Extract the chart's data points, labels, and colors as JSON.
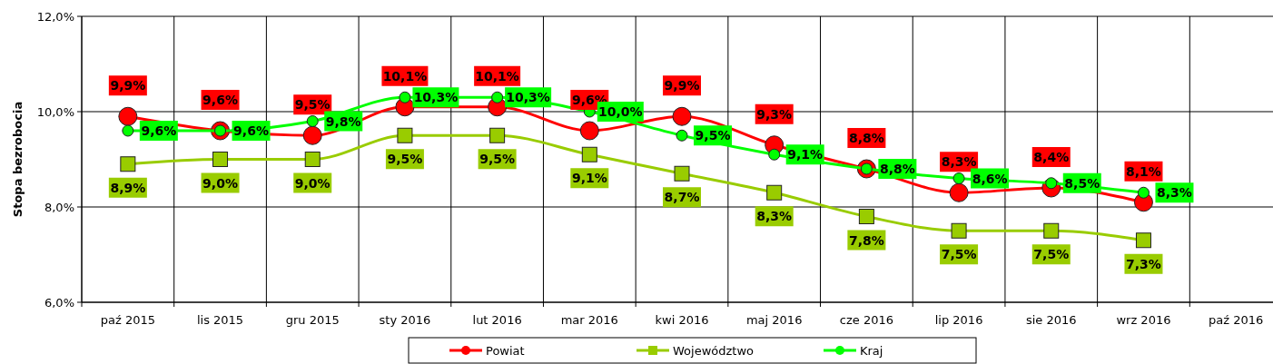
{
  "chart_data": {
    "type": "line",
    "ylabel": "Stopa bezrobocia",
    "categories": [
      "paź 2015",
      "lis 2015",
      "gru 2015",
      "sty 2016",
      "lut 2016",
      "mar 2016",
      "kwi 2016",
      "maj 2016",
      "cze 2016",
      "lip 2016",
      "sie 2016",
      "wrz 2016",
      "paź 2016"
    ],
    "series": [
      {
        "name": "Powiat",
        "color": "#ff0000",
        "marker": "circle",
        "values": [
          9.9,
          9.6,
          9.5,
          10.1,
          10.1,
          9.6,
          9.9,
          9.3,
          8.8,
          8.3,
          8.4,
          8.1,
          null
        ],
        "value_labels": [
          "9,9%",
          "9,6%",
          "9,5%",
          "10,1%",
          "10,1%",
          "9,6%",
          "9,9%",
          "9,3%",
          "8,8%",
          "8,3%",
          "8,4%",
          "8,1%",
          null
        ]
      },
      {
        "name": "Województwo",
        "color": "#99cc00",
        "marker": "square",
        "values": [
          8.9,
          9.0,
          9.0,
          9.5,
          9.5,
          9.1,
          8.7,
          8.3,
          7.8,
          7.5,
          7.5,
          7.3,
          null
        ],
        "value_labels": [
          "8,9%",
          "9,0%",
          "9,0%",
          "9,5%",
          "9,5%",
          "9,1%",
          "8,7%",
          "8,3%",
          "7,8%",
          "7,5%",
          "7,5%",
          "7,3%",
          null
        ]
      },
      {
        "name": "Kraj",
        "color": "#00ff00",
        "marker": "circle",
        "values": [
          9.6,
          9.6,
          9.8,
          10.3,
          10.3,
          10.0,
          9.5,
          9.1,
          8.8,
          8.6,
          8.5,
          8.3,
          null
        ],
        "value_labels": [
          "9,6%",
          "9,6%",
          "9,8%",
          "10,3%",
          "10,3%",
          "10,0%",
          "9,5%",
          "9,1%",
          "8,8%",
          "8,6%",
          "8,5%",
          "8,3%",
          null
        ]
      }
    ],
    "ylim": [
      6,
      12
    ],
    "yticks": [
      {
        "value": 6,
        "label": "6,0%"
      },
      {
        "value": 8,
        "label": "8,0%"
      },
      {
        "value": 10,
        "label": "10,0%"
      },
      {
        "value": 12,
        "label": "12,0%"
      }
    ],
    "grid": true,
    "legend": "bottom"
  }
}
